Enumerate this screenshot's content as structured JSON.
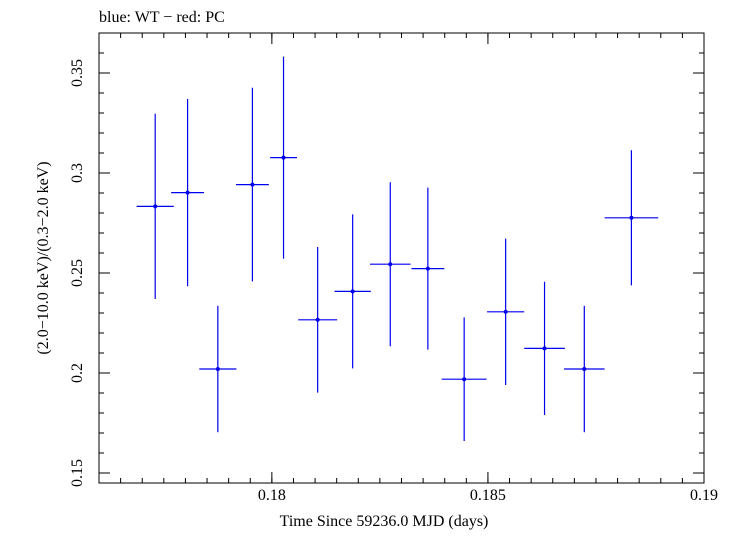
{
  "chart_data": {
    "type": "scatter",
    "title": "blue: WT − red: PC",
    "xlabel": "Time Since 59236.0 MJD (days)",
    "ylabel": "(2.0−10.0 keV)/(0.3−2.0 keV)",
    "xlim": [
      0.176,
      0.19
    ],
    "ylim": [
      0.145,
      0.37
    ],
    "x_ticks": [
      {
        "value": 0.18,
        "label": "0.18"
      },
      {
        "value": 0.185,
        "label": "0.185"
      },
      {
        "value": 0.19,
        "label": "0.19"
      }
    ],
    "y_ticks": [
      {
        "value": 0.15,
        "label": "0.15"
      },
      {
        "value": 0.2,
        "label": "0.2"
      },
      {
        "value": 0.25,
        "label": "0.25"
      },
      {
        "value": 0.3,
        "label": "0.3"
      },
      {
        "value": 0.35,
        "label": "0.35"
      }
    ],
    "grid": false,
    "series": [
      {
        "color": "#0000ee",
        "points": [
          {
            "x": 0.1773,
            "xerr": 0.00043,
            "y": 0.2833,
            "yerr": 0.0463
          },
          {
            "x": 0.17805,
            "xerr": 0.00038,
            "y": 0.2902,
            "yerr": 0.0468
          },
          {
            "x": 0.17875,
            "xerr": 0.00043,
            "y": 0.202,
            "yerr": 0.0316
          },
          {
            "x": 0.17955,
            "xerr": 0.00038,
            "y": 0.2942,
            "yerr": 0.0484
          },
          {
            "x": 0.18027,
            "xerr": 0.00031,
            "y": 0.3077,
            "yerr": 0.0505
          },
          {
            "x": 0.18106,
            "xerr": 0.00045,
            "y": 0.2266,
            "yerr": 0.0364
          },
          {
            "x": 0.18187,
            "xerr": 0.00042,
            "y": 0.2408,
            "yerr": 0.0385
          },
          {
            "x": 0.18274,
            "xerr": 0.00047,
            "y": 0.2544,
            "yerr": 0.041
          },
          {
            "x": 0.18361,
            "xerr": 0.00038,
            "y": 0.2522,
            "yerr": 0.0405
          },
          {
            "x": 0.18445,
            "xerr": 0.00052,
            "y": 0.1969,
            "yerr": 0.0309
          },
          {
            "x": 0.18541,
            "xerr": 0.00043,
            "y": 0.2306,
            "yerr": 0.0366
          },
          {
            "x": 0.18631,
            "xerr": 0.00047,
            "y": 0.2123,
            "yerr": 0.0333
          },
          {
            "x": 0.18723,
            "xerr": 0.00047,
            "y": 0.202,
            "yerr": 0.0316
          },
          {
            "x": 0.18832,
            "xerr": 0.00062,
            "y": 0.2776,
            "yerr": 0.0338
          }
        ]
      }
    ]
  }
}
